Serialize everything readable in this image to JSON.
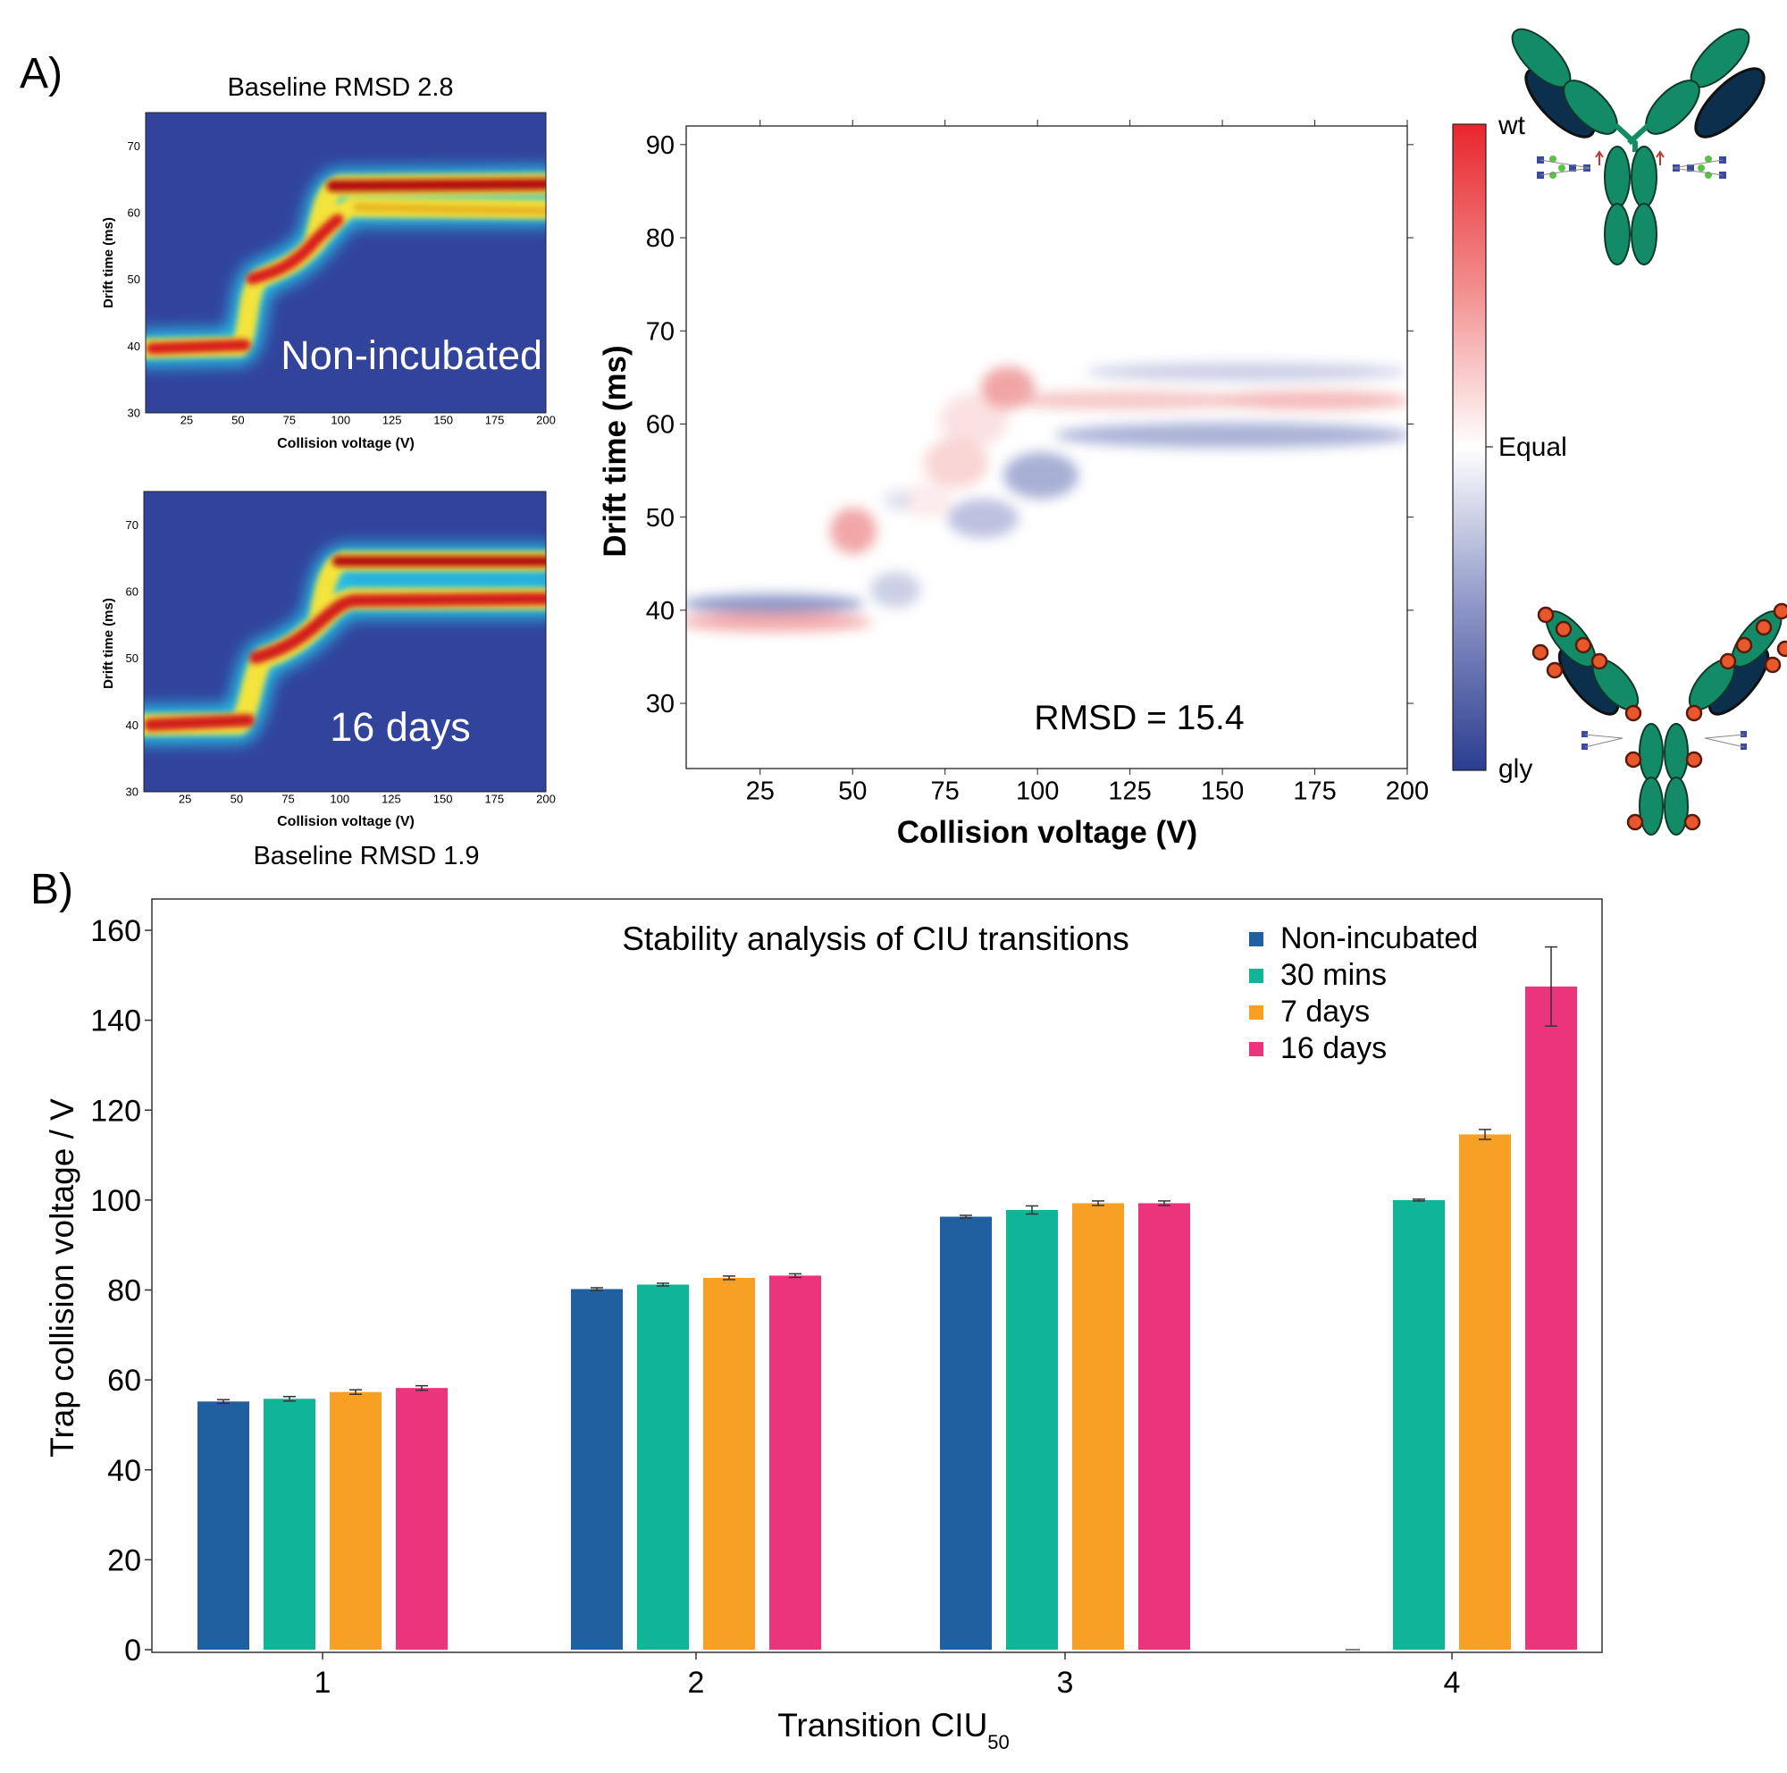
{
  "panel_a": {
    "label": "A)",
    "heatmaps": [
      {
        "title": "Baseline RMSD 2.8",
        "overlay_label": "Non-incubated",
        "xlabel": "Collision voltage (V)",
        "ylabel": "Drift time (ms)",
        "xticks": [
          25,
          50,
          75,
          100,
          125,
          150,
          175,
          200
        ],
        "yticks": [
          30,
          40,
          50,
          60,
          70
        ],
        "xlim": [
          5,
          200
        ],
        "ylim": [
          30,
          75
        ]
      },
      {
        "title": "Baseline RMSD 1.9",
        "overlay_label": "16 days",
        "xlabel": "Collision voltage (V)",
        "ylabel": "Drift time (ms)",
        "xticks": [
          25,
          50,
          75,
          100,
          125,
          150,
          175,
          200
        ],
        "yticks": [
          30,
          40,
          50,
          60,
          70
        ],
        "xlim": [
          5,
          200
        ],
        "ylim": [
          30,
          75
        ]
      }
    ],
    "difference_plot": {
      "annotation": "RMSD = 15.4",
      "xlabel": "Collision voltage (V)",
      "ylabel": "Drift time (ms)",
      "xticks": [
        25,
        50,
        75,
        100,
        125,
        150,
        175,
        200
      ],
      "yticks": [
        30,
        40,
        50,
        60,
        70,
        80,
        90
      ],
      "xlim": [
        5,
        200
      ],
      "ylim": [
        23,
        92
      ]
    },
    "colorbar": {
      "top_label": "wt",
      "mid_label": "Equal",
      "bottom_label": "gly",
      "top_color": "#e8262c",
      "bottom_color": "#2b3d8f"
    },
    "icons": [
      "antibody-wt-icon",
      "antibody-glycated-icon"
    ],
    "colors": {
      "antibody_green": "#138b67",
      "antibody_navy": "#0d2f4e",
      "glycation_orange": "#e8582c"
    }
  },
  "panel_b": {
    "label": "B)"
  },
  "chart_data": {
    "type": "bar",
    "title": "Stability analysis of CIU transitions",
    "xlabel": "Transition CIU",
    "xlabel_sub": "50",
    "ylabel": "Trap collision voltage / V",
    "categories": [
      "1",
      "2",
      "3",
      "4"
    ],
    "ylim": [
      0,
      165
    ],
    "yticks": [
      0,
      20,
      40,
      60,
      80,
      100,
      120,
      140,
      160
    ],
    "legend_position": "top-right",
    "series": [
      {
        "name": "Non-incubated",
        "color": "#2060a0",
        "values": [
          55.2,
          80.2,
          96.3,
          0
        ],
        "errors": [
          0.4,
          0.3,
          0.3,
          0
        ]
      },
      {
        "name": "30 mins",
        "color": "#10b598",
        "values": [
          55.8,
          81.2,
          97.8,
          100.0
        ],
        "errors": [
          0.5,
          0.3,
          0.9,
          0.2
        ]
      },
      {
        "name": "7 days",
        "color": "#f7a024",
        "values": [
          57.3,
          82.7,
          99.3,
          114.6
        ],
        "errors": [
          0.5,
          0.4,
          0.5,
          1.1
        ]
      },
      {
        "name": "16 days",
        "color": "#eb347c",
        "values": [
          58.2,
          83.2,
          99.3,
          147.5
        ],
        "errors": [
          0.5,
          0.4,
          0.5,
          8.8
        ]
      }
    ]
  }
}
